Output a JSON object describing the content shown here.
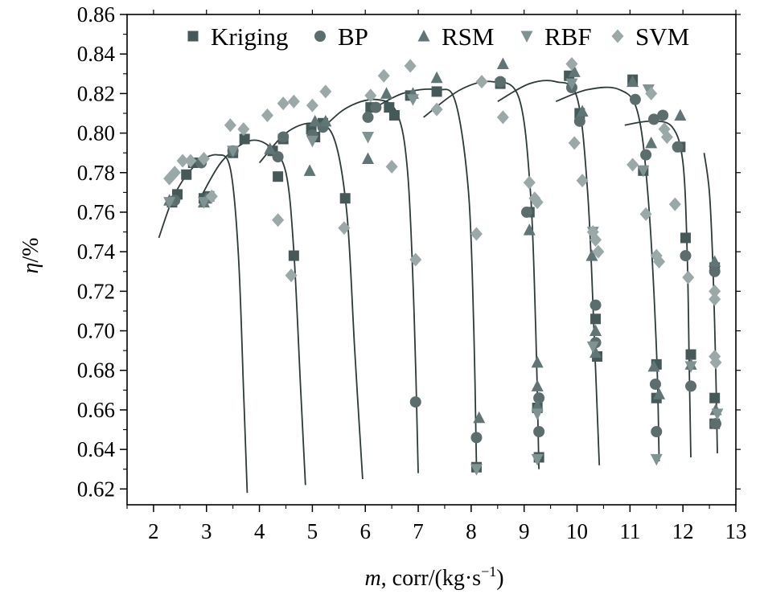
{
  "chart_data": {
    "type": "scatter",
    "title": "",
    "xlabel": {
      "var": "m",
      "rest": ", corr/(kg·s",
      "sup": "−1",
      "close": ")"
    },
    "ylabel": {
      "var": "η",
      "rest": "/%"
    },
    "xlim": [
      1.5,
      13
    ],
    "ylim": [
      0.612,
      0.86
    ],
    "xticks": [
      "2",
      "3",
      "4",
      "5",
      "6",
      "7",
      "8",
      "9",
      "10",
      "11",
      "12",
      "13"
    ],
    "yticks": [
      "0.62",
      "0.64",
      "0.66",
      "0.68",
      "0.70",
      "0.72",
      "0.74",
      "0.76",
      "0.78",
      "0.80",
      "0.82",
      "0.84",
      "0.86"
    ],
    "legend_position": "top",
    "colors": {
      "axis": "#000000",
      "curve": "#2e3a3a",
      "Kriging": "#455959",
      "BP": "#5b6d6d",
      "RSM": "#607575",
      "RBF": "#7f9393",
      "SVM": "#9aa8a8"
    },
    "series": [
      {
        "name": "Kriging",
        "marker": "square",
        "points": [
          [
            2.35,
            0.765
          ],
          [
            2.45,
            0.769
          ],
          [
            2.62,
            0.779
          ],
          [
            2.75,
            0.785
          ],
          [
            2.95,
            0.767
          ],
          [
            3.05,
            0.768
          ],
          [
            3.5,
            0.79
          ],
          [
            3.72,
            0.797
          ],
          [
            4.25,
            0.791
          ],
          [
            4.35,
            0.778
          ],
          [
            4.45,
            0.797
          ],
          [
            4.65,
            0.738
          ],
          [
            4.98,
            0.802
          ],
          [
            5.05,
            0.798
          ],
          [
            5.2,
            0.805
          ],
          [
            5.62,
            0.767
          ],
          [
            6.1,
            0.813
          ],
          [
            6.45,
            0.813
          ],
          [
            6.55,
            0.809
          ],
          [
            6.85,
            0.819
          ],
          [
            7.35,
            0.821
          ],
          [
            8.1,
            0.631
          ],
          [
            8.55,
            0.825
          ],
          [
            9.1,
            0.76
          ],
          [
            9.25,
            0.661
          ],
          [
            9.28,
            0.636
          ],
          [
            9.85,
            0.829
          ],
          [
            10.05,
            0.81
          ],
          [
            10.35,
            0.706
          ],
          [
            10.38,
            0.687
          ],
          [
            11.05,
            0.827
          ],
          [
            11.25,
            0.781
          ],
          [
            11.5,
            0.683
          ],
          [
            11.5,
            0.666
          ],
          [
            11.95,
            0.793
          ],
          [
            12.05,
            0.747
          ],
          [
            12.15,
            0.688
          ],
          [
            12.6,
            0.732
          ],
          [
            12.6,
            0.666
          ],
          [
            12.6,
            0.653
          ]
        ]
      },
      {
        "name": "BP",
        "marker": "circle",
        "points": [
          [
            2.4,
            0.766
          ],
          [
            2.9,
            0.785
          ],
          [
            3.5,
            0.791
          ],
          [
            4.35,
            0.788
          ],
          [
            4.45,
            0.798
          ],
          [
            5.0,
            0.799
          ],
          [
            5.2,
            0.803
          ],
          [
            6.05,
            0.808
          ],
          [
            6.2,
            0.813
          ],
          [
            6.95,
            0.664
          ],
          [
            8.1,
            0.646
          ],
          [
            8.55,
            0.826
          ],
          [
            9.05,
            0.76
          ],
          [
            9.28,
            0.666
          ],
          [
            9.28,
            0.649
          ],
          [
            9.9,
            0.823
          ],
          [
            10.05,
            0.806
          ],
          [
            10.35,
            0.713
          ],
          [
            10.35,
            0.694
          ],
          [
            11.1,
            0.817
          ],
          [
            11.3,
            0.789
          ],
          [
            11.45,
            0.807
          ],
          [
            11.48,
            0.673
          ],
          [
            11.5,
            0.649
          ],
          [
            11.62,
            0.809
          ],
          [
            11.9,
            0.793
          ],
          [
            12.05,
            0.738
          ],
          [
            12.15,
            0.672
          ],
          [
            12.6,
            0.73
          ],
          [
            12.62,
            0.653
          ]
        ]
      },
      {
        "name": "RSM",
        "marker": "triangle",
        "points": [
          [
            2.3,
            0.766
          ],
          [
            2.95,
            0.765
          ],
          [
            3.0,
            0.767
          ],
          [
            4.2,
            0.792
          ],
          [
            4.95,
            0.781
          ],
          [
            5.05,
            0.806
          ],
          [
            5.25,
            0.806
          ],
          [
            6.05,
            0.787
          ],
          [
            6.4,
            0.82
          ],
          [
            6.9,
            0.82
          ],
          [
            7.35,
            0.828
          ],
          [
            8.15,
            0.656
          ],
          [
            8.6,
            0.835
          ],
          [
            9.1,
            0.751
          ],
          [
            9.25,
            0.684
          ],
          [
            9.25,
            0.672
          ],
          [
            9.25,
            0.662
          ],
          [
            9.95,
            0.831
          ],
          [
            10.1,
            0.811
          ],
          [
            10.28,
            0.738
          ],
          [
            10.35,
            0.7
          ],
          [
            10.35,
            0.689
          ],
          [
            11.05,
            0.826
          ],
          [
            11.4,
            0.795
          ],
          [
            11.45,
            0.682
          ],
          [
            11.55,
            0.668
          ],
          [
            11.95,
            0.809
          ],
          [
            12.15,
            0.683
          ],
          [
            12.6,
            0.735
          ],
          [
            12.62,
            0.66
          ]
        ]
      },
      {
        "name": "RBF",
        "marker": "triangle-down",
        "points": [
          [
            2.3,
            0.765
          ],
          [
            2.95,
            0.765
          ],
          [
            3.5,
            0.791
          ],
          [
            5.0,
            0.796
          ],
          [
            6.05,
            0.798
          ],
          [
            6.9,
            0.817
          ],
          [
            8.1,
            0.63
          ],
          [
            9.25,
            0.635
          ],
          [
            9.25,
            0.658
          ],
          [
            9.9,
            0.825
          ],
          [
            10.3,
            0.75
          ],
          [
            10.3,
            0.692
          ],
          [
            11.25,
            0.781
          ],
          [
            11.35,
            0.822
          ],
          [
            11.5,
            0.635
          ],
          [
            12.15,
            0.682
          ],
          [
            12.65,
            0.658
          ]
        ]
      },
      {
        "name": "SVM",
        "marker": "diamond",
        "points": [
          [
            2.3,
            0.777
          ],
          [
            2.4,
            0.78
          ],
          [
            2.55,
            0.786
          ],
          [
            2.7,
            0.786
          ],
          [
            2.95,
            0.787
          ],
          [
            3.1,
            0.768
          ],
          [
            3.45,
            0.804
          ],
          [
            3.7,
            0.802
          ],
          [
            4.15,
            0.809
          ],
          [
            4.35,
            0.756
          ],
          [
            4.45,
            0.815
          ],
          [
            4.6,
            0.728
          ],
          [
            4.65,
            0.816
          ],
          [
            5.0,
            0.814
          ],
          [
            5.25,
            0.821
          ],
          [
            5.6,
            0.752
          ],
          [
            6.1,
            0.819
          ],
          [
            6.35,
            0.829
          ],
          [
            6.5,
            0.783
          ],
          [
            6.85,
            0.834
          ],
          [
            6.95,
            0.736
          ],
          [
            7.35,
            0.812
          ],
          [
            8.1,
            0.749
          ],
          [
            8.2,
            0.826
          ],
          [
            8.6,
            0.808
          ],
          [
            9.1,
            0.775
          ],
          [
            9.2,
            0.767
          ],
          [
            9.25,
            0.765
          ],
          [
            9.9,
            0.835
          ],
          [
            9.95,
            0.795
          ],
          [
            10.1,
            0.776
          ],
          [
            10.3,
            0.75
          ],
          [
            10.35,
            0.746
          ],
          [
            10.4,
            0.74
          ],
          [
            11.05,
            0.784
          ],
          [
            11.3,
            0.759
          ],
          [
            11.4,
            0.82
          ],
          [
            11.5,
            0.738
          ],
          [
            11.55,
            0.735
          ],
          [
            11.65,
            0.802
          ],
          [
            11.7,
            0.798
          ],
          [
            11.85,
            0.764
          ],
          [
            12.1,
            0.727
          ],
          [
            12.6,
            0.72
          ],
          [
            12.6,
            0.716
          ],
          [
            12.6,
            0.687
          ],
          [
            12.62,
            0.684
          ]
        ]
      }
    ],
    "curves": [
      {
        "speed_line": 1,
        "points": [
          [
            2.1,
            0.747
          ],
          [
            2.4,
            0.769
          ],
          [
            2.8,
            0.784
          ],
          [
            3.2,
            0.789
          ],
          [
            3.45,
            0.782
          ],
          [
            3.6,
            0.74
          ],
          [
            3.7,
            0.67
          ],
          [
            3.77,
            0.618
          ]
        ]
      },
      {
        "speed_line": 2,
        "points": [
          [
            2.9,
            0.768
          ],
          [
            3.3,
            0.786
          ],
          [
            3.8,
            0.796
          ],
          [
            4.2,
            0.793
          ],
          [
            4.5,
            0.78
          ],
          [
            4.65,
            0.74
          ],
          [
            4.78,
            0.67
          ],
          [
            4.87,
            0.622
          ]
        ]
      },
      {
        "speed_line": 3,
        "points": [
          [
            4.0,
            0.785
          ],
          [
            4.5,
            0.8
          ],
          [
            5.0,
            0.805
          ],
          [
            5.4,
            0.798
          ],
          [
            5.65,
            0.76
          ],
          [
            5.8,
            0.69
          ],
          [
            5.95,
            0.625
          ]
        ]
      },
      {
        "speed_line": 4,
        "points": [
          [
            5.0,
            0.797
          ],
          [
            5.6,
            0.812
          ],
          [
            6.2,
            0.817
          ],
          [
            6.6,
            0.81
          ],
          [
            6.8,
            0.78
          ],
          [
            6.92,
            0.71
          ],
          [
            7.0,
            0.628
          ]
        ]
      },
      {
        "speed_line": 5,
        "points": [
          [
            6.0,
            0.81
          ],
          [
            6.7,
            0.82
          ],
          [
            7.35,
            0.822
          ],
          [
            7.7,
            0.816
          ],
          [
            7.95,
            0.77
          ],
          [
            8.05,
            0.7
          ],
          [
            8.1,
            0.63
          ]
        ]
      },
      {
        "speed_line": 6,
        "points": [
          [
            7.1,
            0.808
          ],
          [
            7.8,
            0.822
          ],
          [
            8.4,
            0.826
          ],
          [
            8.9,
            0.818
          ],
          [
            9.12,
            0.77
          ],
          [
            9.22,
            0.7
          ],
          [
            9.28,
            0.63
          ]
        ]
      },
      {
        "speed_line": 7,
        "points": [
          [
            8.5,
            0.816
          ],
          [
            9.1,
            0.825
          ],
          [
            9.6,
            0.826
          ],
          [
            10.0,
            0.818
          ],
          [
            10.2,
            0.77
          ],
          [
            10.32,
            0.7
          ],
          [
            10.42,
            0.632
          ]
        ]
      },
      {
        "speed_line": 8,
        "points": [
          [
            9.6,
            0.816
          ],
          [
            10.2,
            0.822
          ],
          [
            10.8,
            0.822
          ],
          [
            11.15,
            0.81
          ],
          [
            11.35,
            0.765
          ],
          [
            11.5,
            0.69
          ],
          [
            11.55,
            0.634
          ]
        ]
      },
      {
        "speed_line": 9,
        "points": [
          [
            10.9,
            0.804
          ],
          [
            11.4,
            0.806
          ],
          [
            11.8,
            0.803
          ],
          [
            12.0,
            0.785
          ],
          [
            12.08,
            0.74
          ],
          [
            12.12,
            0.68
          ],
          [
            12.15,
            0.636
          ]
        ]
      },
      {
        "speed_line": 10,
        "points": [
          [
            12.4,
            0.79
          ],
          [
            12.5,
            0.77
          ],
          [
            12.57,
            0.73
          ],
          [
            12.62,
            0.68
          ],
          [
            12.65,
            0.638
          ]
        ]
      }
    ]
  }
}
